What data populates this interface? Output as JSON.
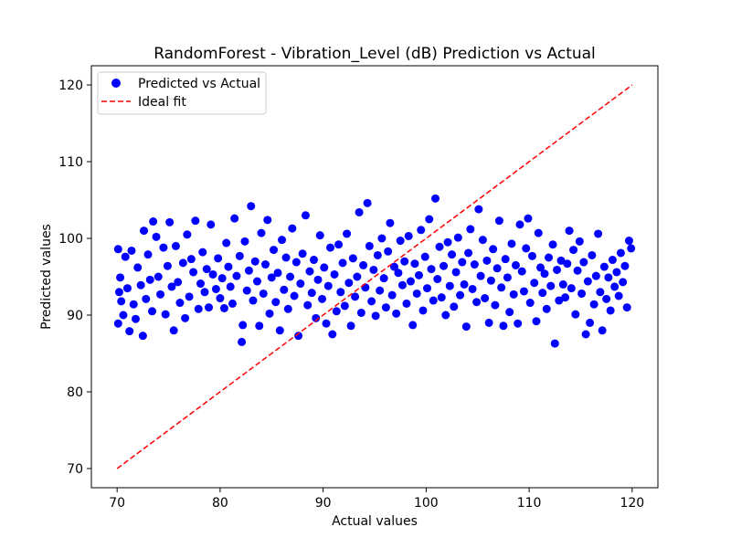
{
  "chart_data": {
    "type": "scatter",
    "title": "RandomForest - Vibration_Level (dB) Prediction vs Actual",
    "xlabel": "Actual values",
    "ylabel": "Predicted values",
    "xlim": [
      67.5,
      122.5
    ],
    "ylim": [
      67.5,
      122.5
    ],
    "xticks": [
      70,
      80,
      90,
      100,
      110,
      120
    ],
    "yticks": [
      70,
      80,
      90,
      100,
      110,
      120
    ],
    "grid": false,
    "legend_position": "top-left",
    "colors": {
      "points": "#0000ff",
      "ideal": "#ff0000"
    },
    "series": [
      {
        "name": "Predicted vs Actual",
        "kind": "scatter",
        "points": [
          [
            70.1,
            98.6
          ],
          [
            70.2,
            93.0
          ],
          [
            70.1,
            88.9
          ],
          [
            70.3,
            94.9
          ],
          [
            70.4,
            91.8
          ],
          [
            70.6,
            90.0
          ],
          [
            70.8,
            97.6
          ],
          [
            71.0,
            93.5
          ],
          [
            71.2,
            87.9
          ],
          [
            71.4,
            98.4
          ],
          [
            71.6,
            91.4
          ],
          [
            71.8,
            89.5
          ],
          [
            72.0,
            96.2
          ],
          [
            72.3,
            93.9
          ],
          [
            72.5,
            87.3
          ],
          [
            72.6,
            101.0
          ],
          [
            72.8,
            92.1
          ],
          [
            73.0,
            97.9
          ],
          [
            73.2,
            94.6
          ],
          [
            73.4,
            90.5
          ],
          [
            73.5,
            102.2
          ],
          [
            73.8,
            100.2
          ],
          [
            74.0,
            95.0
          ],
          [
            74.2,
            92.7
          ],
          [
            74.5,
            98.8
          ],
          [
            74.7,
            90.1
          ],
          [
            74.9,
            96.4
          ],
          [
            75.1,
            102.1
          ],
          [
            75.3,
            93.7
          ],
          [
            75.5,
            88.0
          ],
          [
            75.7,
            99.0
          ],
          [
            75.9,
            94.3
          ],
          [
            76.1,
            91.6
          ],
          [
            76.4,
            96.8
          ],
          [
            76.6,
            89.6
          ],
          [
            76.8,
            100.5
          ],
          [
            77.0,
            92.4
          ],
          [
            77.2,
            97.3
          ],
          [
            77.4,
            95.6
          ],
          [
            77.6,
            102.3
          ],
          [
            77.9,
            90.8
          ],
          [
            78.1,
            94.1
          ],
          [
            78.3,
            98.2
          ],
          [
            78.5,
            93.0
          ],
          [
            78.7,
            96.0
          ],
          [
            78.9,
            91.0
          ],
          [
            79.1,
            101.8
          ],
          [
            79.3,
            95.3
          ],
          [
            79.6,
            93.4
          ],
          [
            79.8,
            97.4
          ],
          [
            80.0,
            92.2
          ],
          [
            80.2,
            94.8
          ],
          [
            80.4,
            90.9
          ],
          [
            80.6,
            99.4
          ],
          [
            80.8,
            96.3
          ],
          [
            81.0,
            93.7
          ],
          [
            81.2,
            91.5
          ],
          [
            81.4,
            102.6
          ],
          [
            81.6,
            95.1
          ],
          [
            81.9,
            97.7
          ],
          [
            82.1,
            86.5
          ],
          [
            82.2,
            88.7
          ],
          [
            82.4,
            99.6
          ],
          [
            82.6,
            93.2
          ],
          [
            82.8,
            95.8
          ],
          [
            83.0,
            104.2
          ],
          [
            83.2,
            91.9
          ],
          [
            83.4,
            97.0
          ],
          [
            83.6,
            94.4
          ],
          [
            83.8,
            88.6
          ],
          [
            84.0,
            100.7
          ],
          [
            84.2,
            92.8
          ],
          [
            84.4,
            96.6
          ],
          [
            84.6,
            102.4
          ],
          [
            84.8,
            90.2
          ],
          [
            85.0,
            94.9
          ],
          [
            85.2,
            98.5
          ],
          [
            85.4,
            91.7
          ],
          [
            85.6,
            95.5
          ],
          [
            85.8,
            88.0
          ],
          [
            86.0,
            99.8
          ],
          [
            86.2,
            93.3
          ],
          [
            86.4,
            97.5
          ],
          [
            86.6,
            90.8
          ],
          [
            86.8,
            95.0
          ],
          [
            87.0,
            101.3
          ],
          [
            87.2,
            92.5
          ],
          [
            87.4,
            96.9
          ],
          [
            87.6,
            87.3
          ],
          [
            87.8,
            94.1
          ],
          [
            88.0,
            98.0
          ],
          [
            88.3,
            103.0
          ],
          [
            88.5,
            91.3
          ],
          [
            88.7,
            95.7
          ],
          [
            88.9,
            92.9
          ],
          [
            89.1,
            97.2
          ],
          [
            89.3,
            89.6
          ],
          [
            89.5,
            94.6
          ],
          [
            89.7,
            100.4
          ],
          [
            89.9,
            92.1
          ],
          [
            90.1,
            96.2
          ],
          [
            90.3,
            88.9
          ],
          [
            90.5,
            93.8
          ],
          [
            90.7,
            98.8
          ],
          [
            90.9,
            87.5
          ],
          [
            91.1,
            95.3
          ],
          [
            91.3,
            90.5
          ],
          [
            91.5,
            99.2
          ],
          [
            91.7,
            93.0
          ],
          [
            91.9,
            96.8
          ],
          [
            92.1,
            91.2
          ],
          [
            92.3,
            100.6
          ],
          [
            92.5,
            94.2
          ],
          [
            92.7,
            88.6
          ],
          [
            92.9,
            97.4
          ],
          [
            93.1,
            92.4
          ],
          [
            93.3,
            95.0
          ],
          [
            93.5,
            103.4
          ],
          [
            93.7,
            90.3
          ],
          [
            93.9,
            96.5
          ],
          [
            94.1,
            93.6
          ],
          [
            94.3,
            104.6
          ],
          [
            94.5,
            99.0
          ],
          [
            94.7,
            91.8
          ],
          [
            94.9,
            95.9
          ],
          [
            95.1,
            89.9
          ],
          [
            95.3,
            97.8
          ],
          [
            95.5,
            93.2
          ],
          [
            95.7,
            100.0
          ],
          [
            95.9,
            94.8
          ],
          [
            96.1,
            91.0
          ],
          [
            96.3,
            98.3
          ],
          [
            96.5,
            102.0
          ],
          [
            96.7,
            92.6
          ],
          [
            96.9,
            96.3
          ],
          [
            97.1,
            90.2
          ],
          [
            97.3,
            95.5
          ],
          [
            97.5,
            99.7
          ],
          [
            97.7,
            93.9
          ],
          [
            97.9,
            97.0
          ],
          [
            98.1,
            91.5
          ],
          [
            98.3,
            100.3
          ],
          [
            98.5,
            94.4
          ],
          [
            98.7,
            88.7
          ],
          [
            98.9,
            96.7
          ],
          [
            99.1,
            92.8
          ],
          [
            99.3,
            95.2
          ],
          [
            99.5,
            101.1
          ],
          [
            99.7,
            90.6
          ],
          [
            99.9,
            97.6
          ],
          [
            100.1,
            93.5
          ],
          [
            100.3,
            102.5
          ],
          [
            100.5,
            96.0
          ],
          [
            100.7,
            91.9
          ],
          [
            100.9,
            105.2
          ],
          [
            101.1,
            94.7
          ],
          [
            101.3,
            98.9
          ],
          [
            101.5,
            92.3
          ],
          [
            101.7,
            96.4
          ],
          [
            101.9,
            90.0
          ],
          [
            102.1,
            99.5
          ],
          [
            102.3,
            93.8
          ],
          [
            102.5,
            97.9
          ],
          [
            102.7,
            91.1
          ],
          [
            102.9,
            95.6
          ],
          [
            103.1,
            100.1
          ],
          [
            103.3,
            92.6
          ],
          [
            103.5,
            96.9
          ],
          [
            103.7,
            94.0
          ],
          [
            103.9,
            88.5
          ],
          [
            104.1,
            98.1
          ],
          [
            104.3,
            101.2
          ],
          [
            104.5,
            93.4
          ],
          [
            104.7,
            96.6
          ],
          [
            104.9,
            91.7
          ],
          [
            105.1,
            103.8
          ],
          [
            105.3,
            95.1
          ],
          [
            105.5,
            99.8
          ],
          [
            105.7,
            92.2
          ],
          [
            105.9,
            97.1
          ],
          [
            106.1,
            89.0
          ],
          [
            106.3,
            94.5
          ],
          [
            106.5,
            98.6
          ],
          [
            106.7,
            91.3
          ],
          [
            106.9,
            96.1
          ],
          [
            107.1,
            102.3
          ],
          [
            107.3,
            93.6
          ],
          [
            107.5,
            88.6
          ],
          [
            107.7,
            97.3
          ],
          [
            107.9,
            94.9
          ],
          [
            108.1,
            90.4
          ],
          [
            108.3,
            99.3
          ],
          [
            108.5,
            92.7
          ],
          [
            108.7,
            96.5
          ],
          [
            108.9,
            88.9
          ],
          [
            109.1,
            101.8
          ],
          [
            109.3,
            95.7
          ],
          [
            109.5,
            93.1
          ],
          [
            109.7,
            98.7
          ],
          [
            109.9,
            102.6
          ],
          [
            110.1,
            91.6
          ],
          [
            110.3,
            97.7
          ],
          [
            110.5,
            94.2
          ],
          [
            110.7,
            89.2
          ],
          [
            110.9,
            100.7
          ],
          [
            111.1,
            96.2
          ],
          [
            111.3,
            92.9
          ],
          [
            111.5,
            95.4
          ],
          [
            111.7,
            90.8
          ],
          [
            111.9,
            97.5
          ],
          [
            112.1,
            93.8
          ],
          [
            112.3,
            99.2
          ],
          [
            112.5,
            86.3
          ],
          [
            112.7,
            95.9
          ],
          [
            112.9,
            91.9
          ],
          [
            113.1,
            97.1
          ],
          [
            113.3,
            94.0
          ],
          [
            113.5,
            92.3
          ],
          [
            113.7,
            96.7
          ],
          [
            113.9,
            101.0
          ],
          [
            114.1,
            93.5
          ],
          [
            114.3,
            98.5
          ],
          [
            114.5,
            90.1
          ],
          [
            114.7,
            95.8
          ],
          [
            114.9,
            99.6
          ],
          [
            115.1,
            92.8
          ],
          [
            115.3,
            96.9
          ],
          [
            115.5,
            87.5
          ],
          [
            115.7,
            94.4
          ],
          [
            115.9,
            89.0
          ],
          [
            116.1,
            97.8
          ],
          [
            116.3,
            91.4
          ],
          [
            116.5,
            95.1
          ],
          [
            116.7,
            100.6
          ],
          [
            116.9,
            93.0
          ],
          [
            117.1,
            88.0
          ],
          [
            117.3,
            96.3
          ],
          [
            117.5,
            92.1
          ],
          [
            117.7,
            94.9
          ],
          [
            117.9,
            90.6
          ],
          [
            118.1,
            97.2
          ],
          [
            118.3,
            93.7
          ],
          [
            118.5,
            95.6
          ],
          [
            118.7,
            92.5
          ],
          [
            118.9,
            98.1
          ],
          [
            119.1,
            94.3
          ],
          [
            119.3,
            96.4
          ],
          [
            119.5,
            91.0
          ],
          [
            119.7,
            99.7
          ],
          [
            119.9,
            98.7
          ]
        ]
      },
      {
        "name": "Ideal fit",
        "kind": "line",
        "style": "dashed",
        "points": [
          [
            70,
            70
          ],
          [
            120,
            120
          ]
        ]
      }
    ]
  }
}
